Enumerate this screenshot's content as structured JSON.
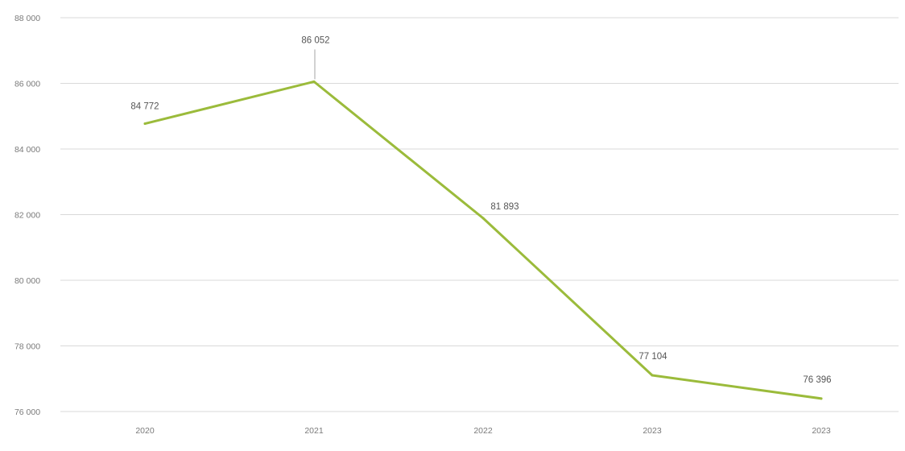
{
  "chart_data": {
    "type": "line",
    "title": "",
    "xlabel": "",
    "ylabel": "",
    "categories": [
      "2020",
      "2021",
      "2022",
      "2023",
      "2023"
    ],
    "series": [
      {
        "values": [
          84772,
          86052,
          81893,
          77104,
          76396
        ],
        "labels": [
          "84 772",
          "86 052",
          "81 893",
          "77 104",
          "76 396"
        ]
      }
    ],
    "ylim": [
      76000,
      88000
    ],
    "yticks": [
      76000,
      78000,
      80000,
      82000,
      84000,
      86000,
      88000
    ],
    "ytick_labels": [
      "76 000",
      "78 000",
      "80 000",
      "82 000",
      "84 000",
      "86 000",
      "88 000"
    ],
    "grid": true,
    "legend": "none",
    "line_color": "#9bbb3b",
    "grid_color": "#d9d9d9",
    "leader_line_color": "#a6a6a6"
  }
}
